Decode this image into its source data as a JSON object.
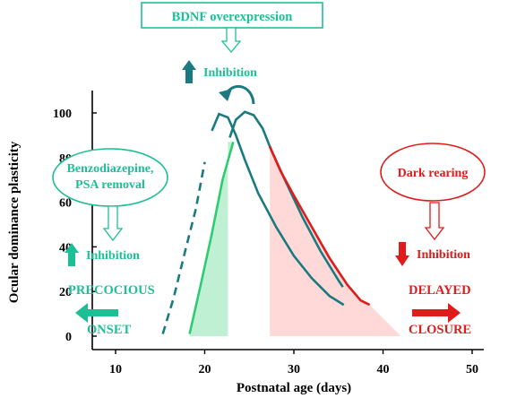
{
  "chart_data": {
    "type": "line",
    "xlabel": "Postnatal age (days)",
    "ylabel": "Ocular dominance plasticity",
    "xlim": [
      10,
      50
    ],
    "ylim": [
      0,
      100
    ],
    "xticks": [
      10,
      20,
      30,
      40,
      50
    ],
    "yticks": [
      0,
      20,
      40,
      60,
      80,
      100
    ],
    "grid": false,
    "series": [
      {
        "curve": "early_dashed",
        "color": "#1a7a80",
        "style": "dashed-then-solid",
        "dash_until_x": 20.5,
        "points": [
          [
            15.3,
            1
          ],
          [
            16.5,
            17
          ],
          [
            17.8,
            38
          ],
          [
            19,
            57
          ],
          [
            20,
            78
          ],
          [
            20.8,
            92
          ],
          [
            21.6,
            99.5
          ],
          [
            22.6,
            98
          ],
          [
            23.5,
            90
          ],
          [
            24.5,
            79
          ],
          [
            26,
            64
          ],
          [
            28,
            49
          ],
          [
            30,
            36
          ],
          [
            32,
            26
          ],
          [
            34,
            18
          ],
          [
            35.6,
            14
          ]
        ]
      },
      {
        "curve": "precocious_green",
        "color": "#2ecc71",
        "points": [
          [
            18.3,
            1
          ],
          [
            19.5,
            22
          ],
          [
            20.8,
            46
          ],
          [
            22,
            70
          ],
          [
            23.2,
            87
          ]
        ]
      },
      {
        "curve": "normal_teal",
        "color": "#1a7a80",
        "points": [
          [
            22.8,
            89
          ],
          [
            23.5,
            97
          ],
          [
            24.5,
            100.5
          ],
          [
            25.5,
            99
          ],
          [
            26.5,
            93
          ],
          [
            27.5,
            83
          ],
          [
            29,
            70
          ],
          [
            31,
            53
          ],
          [
            33,
            38
          ],
          [
            35,
            25
          ],
          [
            35.5,
            22
          ]
        ]
      },
      {
        "curve": "delayed_red",
        "color": "#e01b1b",
        "points": [
          [
            27.3,
            85
          ],
          [
            28.5,
            74
          ],
          [
            30,
            63
          ],
          [
            32,
            49
          ],
          [
            34,
            35
          ],
          [
            36,
            23
          ],
          [
            37.5,
            16
          ],
          [
            38.5,
            14
          ]
        ]
      }
    ],
    "shaded_regions": [
      {
        "name": "precocious_area",
        "color": "#2ecc71",
        "opacity": 0.3,
        "x_range": [
          18.3,
          22.6
        ]
      },
      {
        "name": "delayed_area",
        "color": "#ff9a96",
        "opacity": 0.38,
        "x_range": [
          27.3,
          42
        ]
      }
    ],
    "annotations": {
      "bdnf_box": "BDNF overexpression",
      "inhibition_top": "Inhibition",
      "left_box_line1": "Benzodiazepine,",
      "left_box_line2": "PSA removal",
      "inhibition_left": "Inhibition",
      "precocious": "PRECOCIOUS",
      "onset": "ONSET",
      "right_box": "Dark rearing",
      "inhibition_right": "Inhibition",
      "delayed": "DELAYED",
      "closure": "CLOSURE"
    },
    "colors": {
      "teal": "#1fbf96",
      "curve_teal": "#1a7a80",
      "green": "#2ecc71",
      "red": "#e01b1b"
    }
  }
}
